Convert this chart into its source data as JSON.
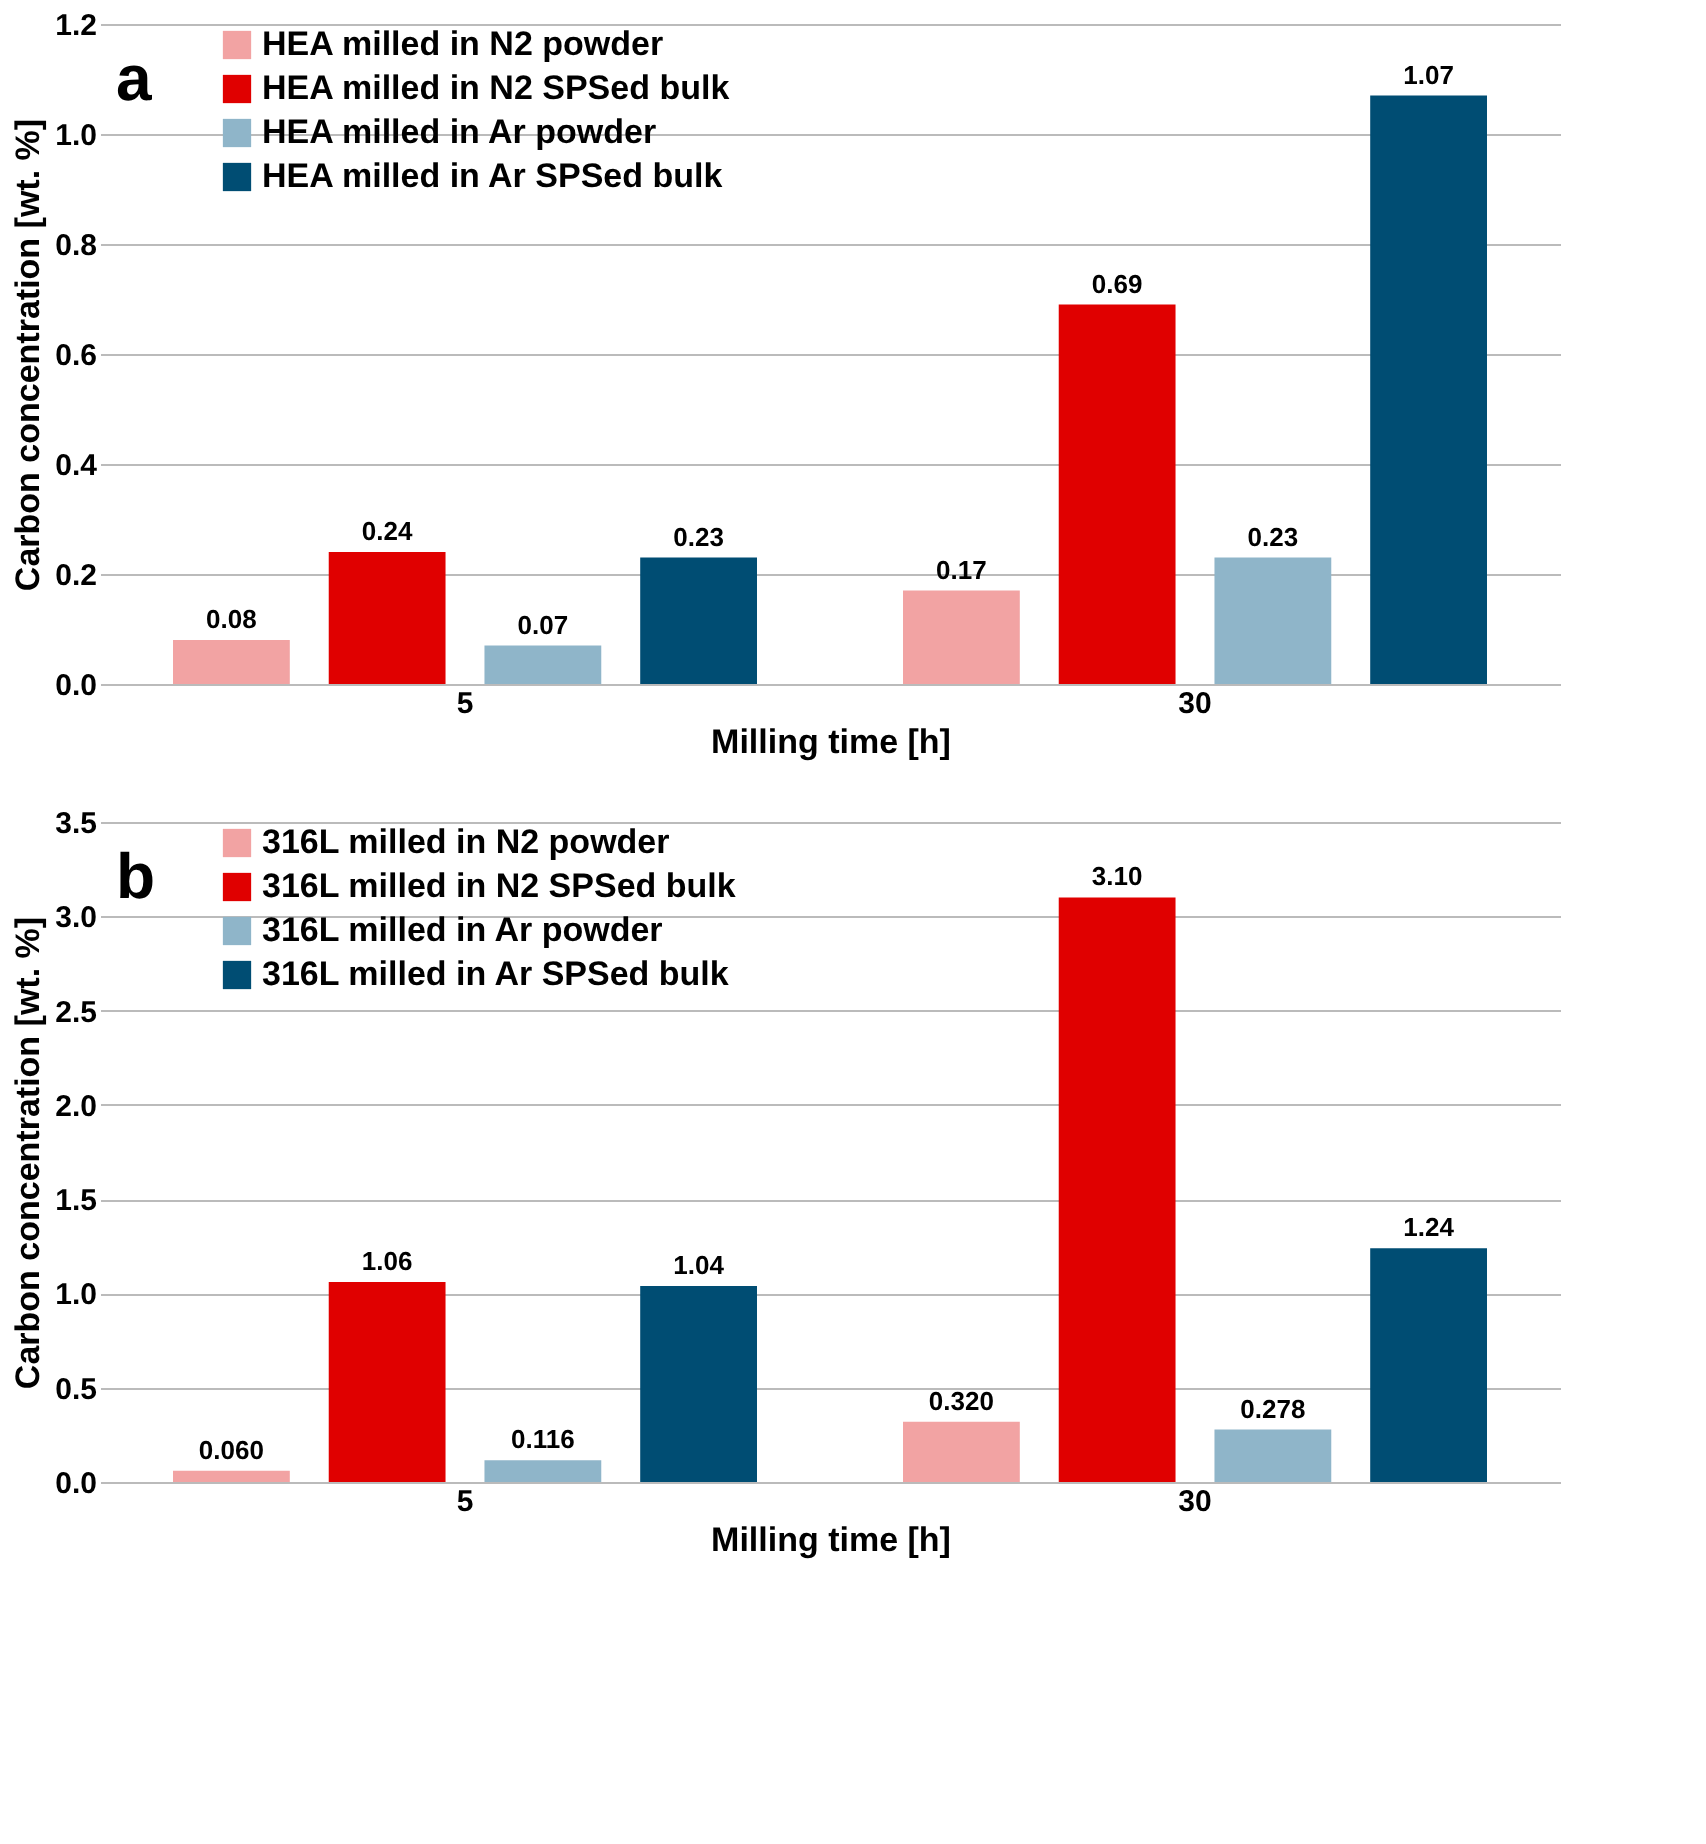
{
  "chart_data": [
    {
      "type": "bar",
      "title": "a",
      "xlabel": "Milling time [h]",
      "ylabel": "Carbon concentration  [wt. %]",
      "categories": [
        "5",
        "30"
      ],
      "ylim": [
        0,
        1.2
      ],
      "yticks": [
        {
          "value": 0,
          "label": "0.0"
        },
        {
          "value": 0.2,
          "label": "0.2"
        },
        {
          "value": 0.4,
          "label": "0.4"
        },
        {
          "value": 0.6,
          "label": "0.6"
        },
        {
          "value": 0.8,
          "label": "0.8"
        },
        {
          "value": 1.0,
          "label": "1.0"
        },
        {
          "value": 1.2,
          "label": "1.2"
        }
      ],
      "grid": "y",
      "legend": "top left",
      "data_labels": true,
      "series": [
        {
          "name": "HEA milled in N2 powder",
          "color": "#f2a3a3",
          "values": [
            0.08,
            0.17
          ]
        },
        {
          "name": "HEA milled in N2 SPSed bulk",
          "color": "#e00000",
          "values": [
            0.24,
            0.69
          ]
        },
        {
          "name": "HEA milled in Ar powder",
          "color": "#8fb5c9",
          "values": [
            0.07,
            0.23
          ]
        },
        {
          "name": "HEA milled in Ar SPSed bulk",
          "color": "#004d73",
          "values": [
            0.23,
            1.07
          ]
        }
      ]
    },
    {
      "type": "bar",
      "title": "b",
      "xlabel": "Milling time  [h]",
      "ylabel": "Carbon concentration  [wt. %]",
      "categories": [
        "5",
        "30"
      ],
      "ylim": [
        0,
        3.5
      ],
      "yticks": [
        {
          "value": 0,
          "label": "0.0"
        },
        {
          "value": 0.5,
          "label": "0.5"
        },
        {
          "value": 1.0,
          "label": "1.0"
        },
        {
          "value": 1.5,
          "label": "1.5"
        },
        {
          "value": 2.0,
          "label": "2.0"
        },
        {
          "value": 2.5,
          "label": "2.5"
        },
        {
          "value": 3.0,
          "label": "3.0"
        },
        {
          "value": 3.5,
          "label": "3.5"
        }
      ],
      "grid": "y",
      "legend": "top left",
      "series": [
        {
          "name": "316L milled in N2 powder",
          "color": "#f2a3a3",
          "values": [
            0.06,
            0.32
          ],
          "value_labels": [
            "0.060",
            "0.320"
          ]
        },
        {
          "name": "316L milled in N2 SPSed bulk",
          "color": "#e00000",
          "values": [
            1.06,
            3.1
          ],
          "value_labels": [
            "1.06",
            "3.10"
          ]
        },
        {
          "name": "316L milled in Ar powder",
          "color": "#8fb5c9",
          "values": [
            0.116,
            0.278
          ],
          "value_labels": [
            "0.116",
            "0.278"
          ]
        },
        {
          "name": "316L milled in Ar SPSed bulk",
          "color": "#004d73",
          "values": [
            1.04,
            1.24
          ],
          "value_labels": [
            "1.04",
            "1.24"
          ]
        }
      ]
    }
  ]
}
